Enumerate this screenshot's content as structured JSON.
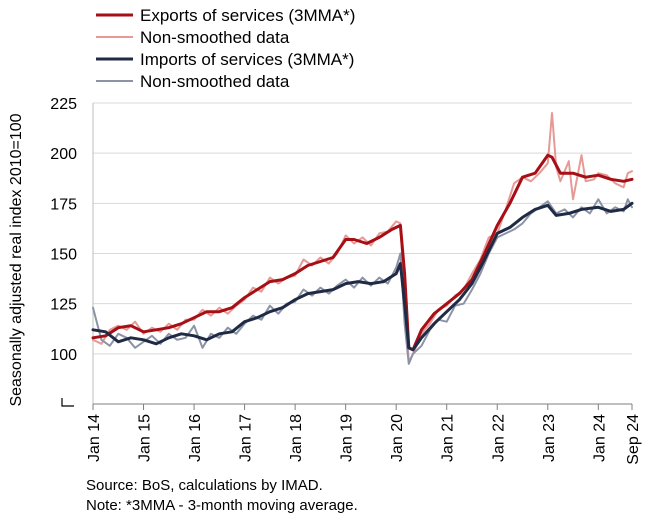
{
  "chart_data": {
    "type": "line",
    "ylabel": "Seasonally adjusted real index 2010=100",
    "xlabel": "",
    "ylim": [
      75,
      225
    ],
    "yticks": [
      100,
      125,
      150,
      175,
      200,
      225
    ],
    "x_range": [
      "2014-01",
      "2024-09"
    ],
    "x_tick_labels": [
      "Jan 14",
      "Jan 15",
      "Jan 16",
      "Jan 17",
      "Jan 18",
      "Jan 19",
      "Jan 20",
      "Jan 21",
      "Jan 22",
      "Jan 23",
      "Jan 24",
      "Sep 24"
    ],
    "x_tick_dates": [
      "2014-01",
      "2015-01",
      "2016-01",
      "2017-01",
      "2018-01",
      "2019-01",
      "2020-01",
      "2021-01",
      "2022-01",
      "2023-01",
      "2024-01",
      "2024-09"
    ],
    "grid": "horizontal",
    "legend_position": "top-left",
    "series": [
      {
        "name": "Exports of services (3MMA*)",
        "color": "#a50f15",
        "width": 3,
        "points": [
          [
            "2014-01",
            108
          ],
          [
            "2014-04",
            109
          ],
          [
            "2014-07",
            113
          ],
          [
            "2014-10",
            114
          ],
          [
            "2015-01",
            111
          ],
          [
            "2015-04",
            112
          ],
          [
            "2015-07",
            113
          ],
          [
            "2015-10",
            115
          ],
          [
            "2016-01",
            118
          ],
          [
            "2016-04",
            121
          ],
          [
            "2016-07",
            121
          ],
          [
            "2016-10",
            123
          ],
          [
            "2017-01",
            128
          ],
          [
            "2017-04",
            132
          ],
          [
            "2017-07",
            136
          ],
          [
            "2017-10",
            137
          ],
          [
            "2018-01",
            140
          ],
          [
            "2018-04",
            144
          ],
          [
            "2018-07",
            146
          ],
          [
            "2018-10",
            148
          ],
          [
            "2019-01",
            157
          ],
          [
            "2019-03",
            157
          ],
          [
            "2019-06",
            155
          ],
          [
            "2019-09",
            158
          ],
          [
            "2019-12",
            162
          ],
          [
            "2020-02",
            164
          ],
          [
            "2020-03",
            140
          ],
          [
            "2020-04",
            103
          ],
          [
            "2020-05",
            102
          ],
          [
            "2020-07",
            112
          ],
          [
            "2020-10",
            120
          ],
          [
            "2021-01",
            125
          ],
          [
            "2021-04",
            130
          ],
          [
            "2021-07",
            137
          ],
          [
            "2021-10",
            150
          ],
          [
            "2022-01",
            164
          ],
          [
            "2022-04",
            175
          ],
          [
            "2022-07",
            188
          ],
          [
            "2022-10",
            190
          ],
          [
            "2023-01",
            199
          ],
          [
            "2023-02",
            198
          ],
          [
            "2023-04",
            190
          ],
          [
            "2023-07",
            190
          ],
          [
            "2023-10",
            188
          ],
          [
            "2024-01",
            189
          ],
          [
            "2024-04",
            187
          ],
          [
            "2024-07",
            186
          ],
          [
            "2024-09",
            187
          ]
        ]
      },
      {
        "name": "Non-smoothed data",
        "color": "#e69a96",
        "width": 2,
        "points": [
          [
            "2014-01",
            107
          ],
          [
            "2014-03",
            105
          ],
          [
            "2014-05",
            112
          ],
          [
            "2014-07",
            114
          ],
          [
            "2014-09",
            112
          ],
          [
            "2014-11",
            116
          ],
          [
            "2015-01",
            110
          ],
          [
            "2015-03",
            113
          ],
          [
            "2015-05",
            111
          ],
          [
            "2015-07",
            115
          ],
          [
            "2015-09",
            112
          ],
          [
            "2015-11",
            117
          ],
          [
            "2016-01",
            117
          ],
          [
            "2016-03",
            122
          ],
          [
            "2016-05",
            119
          ],
          [
            "2016-07",
            123
          ],
          [
            "2016-09",
            120
          ],
          [
            "2016-11",
            124
          ],
          [
            "2017-01",
            127
          ],
          [
            "2017-03",
            133
          ],
          [
            "2017-05",
            131
          ],
          [
            "2017-07",
            138
          ],
          [
            "2017-09",
            135
          ],
          [
            "2017-11",
            138
          ],
          [
            "2018-01",
            139
          ],
          [
            "2018-03",
            147
          ],
          [
            "2018-05",
            144
          ],
          [
            "2018-07",
            148
          ],
          [
            "2018-09",
            145
          ],
          [
            "2018-11",
            150
          ],
          [
            "2019-01",
            159
          ],
          [
            "2019-03",
            155
          ],
          [
            "2019-05",
            158
          ],
          [
            "2019-07",
            154
          ],
          [
            "2019-09",
            160
          ],
          [
            "2019-11",
            161
          ],
          [
            "2020-01",
            166
          ],
          [
            "2020-02",
            165
          ],
          [
            "2020-03",
            125
          ],
          [
            "2020-04",
            96
          ],
          [
            "2020-05",
            100
          ],
          [
            "2020-07",
            110
          ],
          [
            "2020-09",
            115
          ],
          [
            "2020-11",
            122
          ],
          [
            "2021-01",
            124
          ],
          [
            "2021-03",
            129
          ],
          [
            "2021-05",
            132
          ],
          [
            "2021-07",
            140
          ],
          [
            "2021-09",
            147
          ],
          [
            "2021-11",
            158
          ],
          [
            "2022-01",
            160
          ],
          [
            "2022-03",
            172
          ],
          [
            "2022-05",
            185
          ],
          [
            "2022-07",
            188
          ],
          [
            "2022-09",
            186
          ],
          [
            "2022-11",
            190
          ],
          [
            "2023-01",
            195
          ],
          [
            "2023-02",
            220
          ],
          [
            "2023-03",
            193
          ],
          [
            "2023-04",
            186
          ],
          [
            "2023-06",
            196
          ],
          [
            "2023-07",
            177
          ],
          [
            "2023-09",
            199
          ],
          [
            "2023-10",
            186
          ],
          [
            "2023-12",
            187
          ],
          [
            "2024-01",
            190
          ],
          [
            "2024-03",
            189
          ],
          [
            "2024-05",
            185
          ],
          [
            "2024-07",
            183
          ],
          [
            "2024-08",
            190
          ],
          [
            "2024-09",
            191
          ]
        ]
      },
      {
        "name": "Imports of services (3MMA*)",
        "color": "#1f2a44",
        "width": 3,
        "points": [
          [
            "2014-01",
            112
          ],
          [
            "2014-04",
            111
          ],
          [
            "2014-07",
            106
          ],
          [
            "2014-10",
            108
          ],
          [
            "2015-01",
            107
          ],
          [
            "2015-04",
            105
          ],
          [
            "2015-07",
            108
          ],
          [
            "2015-10",
            110
          ],
          [
            "2016-01",
            109
          ],
          [
            "2016-04",
            107
          ],
          [
            "2016-07",
            110
          ],
          [
            "2016-10",
            111
          ],
          [
            "2017-01",
            116
          ],
          [
            "2017-04",
            118
          ],
          [
            "2017-07",
            121
          ],
          [
            "2017-10",
            123
          ],
          [
            "2018-01",
            127
          ],
          [
            "2018-04",
            130
          ],
          [
            "2018-07",
            131
          ],
          [
            "2018-10",
            132
          ],
          [
            "2019-01",
            135
          ],
          [
            "2019-04",
            136
          ],
          [
            "2019-07",
            135
          ],
          [
            "2019-10",
            136
          ],
          [
            "2020-01",
            140
          ],
          [
            "2020-02",
            145
          ],
          [
            "2020-03",
            125
          ],
          [
            "2020-04",
            103
          ],
          [
            "2020-05",
            102
          ],
          [
            "2020-07",
            108
          ],
          [
            "2020-10",
            115
          ],
          [
            "2021-01",
            121
          ],
          [
            "2021-04",
            127
          ],
          [
            "2021-07",
            135
          ],
          [
            "2021-10",
            147
          ],
          [
            "2022-01",
            160
          ],
          [
            "2022-04",
            163
          ],
          [
            "2022-07",
            168
          ],
          [
            "2022-10",
            172
          ],
          [
            "2023-01",
            174
          ],
          [
            "2023-03",
            169
          ],
          [
            "2023-06",
            170
          ],
          [
            "2023-09",
            172
          ],
          [
            "2024-01",
            173
          ],
          [
            "2024-04",
            171
          ],
          [
            "2024-07",
            172
          ],
          [
            "2024-09",
            175
          ]
        ]
      },
      {
        "name": "Non-smoothed data",
        "color": "#8c93a6",
        "width": 2,
        "points": [
          [
            "2014-01",
            123
          ],
          [
            "2014-03",
            107
          ],
          [
            "2014-05",
            104
          ],
          [
            "2014-07",
            110
          ],
          [
            "2014-09",
            108
          ],
          [
            "2014-11",
            103
          ],
          [
            "2015-01",
            106
          ],
          [
            "2015-03",
            109
          ],
          [
            "2015-05",
            105
          ],
          [
            "2015-07",
            110
          ],
          [
            "2015-09",
            107
          ],
          [
            "2015-11",
            108
          ],
          [
            "2016-01",
            114
          ],
          [
            "2016-03",
            103
          ],
          [
            "2016-05",
            110
          ],
          [
            "2016-07",
            108
          ],
          [
            "2016-09",
            113
          ],
          [
            "2016-11",
            110
          ],
          [
            "2017-01",
            115
          ],
          [
            "2017-03",
            119
          ],
          [
            "2017-05",
            117
          ],
          [
            "2017-07",
            124
          ],
          [
            "2017-09",
            120
          ],
          [
            "2017-11",
            125
          ],
          [
            "2018-01",
            126
          ],
          [
            "2018-03",
            132
          ],
          [
            "2018-05",
            129
          ],
          [
            "2018-07",
            133
          ],
          [
            "2018-09",
            130
          ],
          [
            "2018-11",
            134
          ],
          [
            "2019-01",
            137
          ],
          [
            "2019-03",
            133
          ],
          [
            "2019-05",
            138
          ],
          [
            "2019-07",
            134
          ],
          [
            "2019-09",
            138
          ],
          [
            "2019-11",
            135
          ],
          [
            "2020-01",
            143
          ],
          [
            "2020-02",
            150
          ],
          [
            "2020-03",
            115
          ],
          [
            "2020-04",
            95
          ],
          [
            "2020-05",
            100
          ],
          [
            "2020-07",
            104
          ],
          [
            "2020-09",
            112
          ],
          [
            "2020-11",
            117
          ],
          [
            "2021-01",
            116
          ],
          [
            "2021-03",
            124
          ],
          [
            "2021-05",
            125
          ],
          [
            "2021-07",
            132
          ],
          [
            "2021-09",
            140
          ],
          [
            "2021-11",
            150
          ],
          [
            "2022-01",
            158
          ],
          [
            "2022-03",
            160
          ],
          [
            "2022-05",
            162
          ],
          [
            "2022-07",
            165
          ],
          [
            "2022-09",
            170
          ],
          [
            "2022-11",
            173
          ],
          [
            "2023-01",
            176
          ],
          [
            "2023-03",
            170
          ],
          [
            "2023-05",
            172
          ],
          [
            "2023-07",
            168
          ],
          [
            "2023-09",
            173
          ],
          [
            "2023-11",
            170
          ],
          [
            "2024-01",
            177
          ],
          [
            "2024-03",
            170
          ],
          [
            "2024-05",
            173
          ],
          [
            "2024-07",
            171
          ],
          [
            "2024-08",
            177
          ],
          [
            "2024-09",
            173
          ]
        ]
      }
    ],
    "legend_order": [
      0,
      1,
      2,
      3
    ]
  },
  "notes": {
    "source": "Source: BoS, calculations by IMAD.",
    "note": "Note: *3MMA - 3-month moving average."
  }
}
